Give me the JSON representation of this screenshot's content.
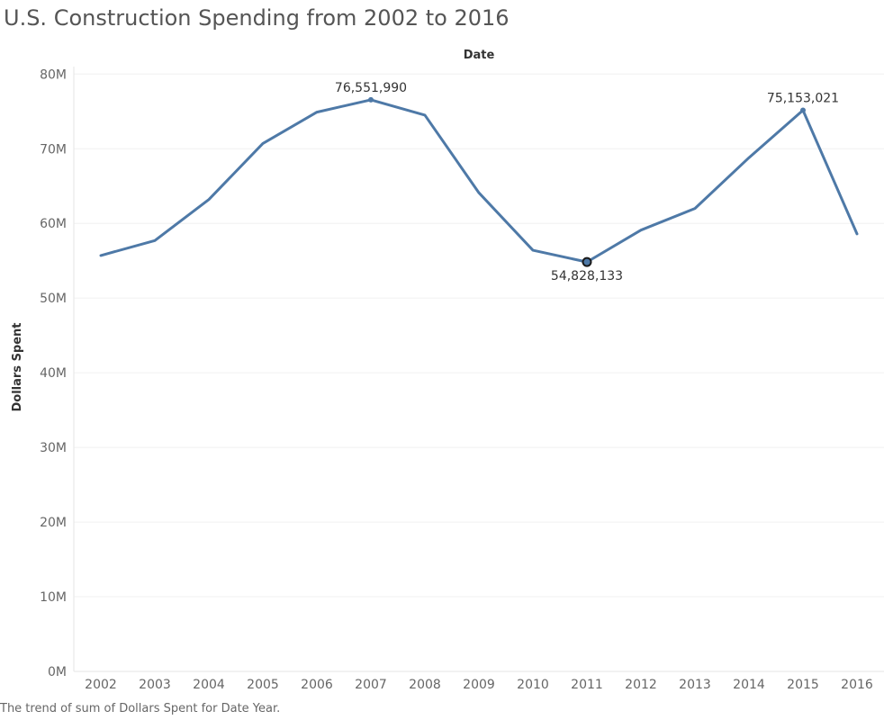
{
  "title": "U.S. Construction Spending from 2002 to 2016",
  "caption": "The trend of sum of Dollars Spent for Date Year.",
  "chart_data": {
    "type": "line",
    "title": "U.S. Construction Spending from 2002 to 2016",
    "xlabel": "Date",
    "ylabel": "Dollars Spent",
    "x": [
      "2002",
      "2003",
      "2004",
      "2005",
      "2006",
      "2007",
      "2008",
      "2009",
      "2010",
      "2011",
      "2012",
      "2013",
      "2014",
      "2015",
      "2016"
    ],
    "series": [
      {
        "values": [
          55700000,
          57700000,
          63200000,
          70700000,
          74900000,
          76551990,
          74500000,
          64100000,
          56400000,
          54828133,
          59100000,
          62000000,
          68800000,
          75153021,
          58600000
        ],
        "color": "#4e79a7"
      }
    ],
    "ylim": [
      0,
      81000000
    ],
    "y_ticks": [
      0,
      10000000,
      20000000,
      30000000,
      40000000,
      50000000,
      60000000,
      70000000,
      80000000
    ],
    "y_tick_labels": [
      "0M",
      "10M",
      "20M",
      "30M",
      "40M",
      "50M",
      "60M",
      "70M",
      "80M"
    ],
    "data_labels": [
      {
        "index": 5,
        "text": "76,551,990",
        "position": "above"
      },
      {
        "index": 9,
        "text": "54,828,133",
        "position": "below",
        "highlighted": true
      },
      {
        "index": 13,
        "text": "75,153,021",
        "position": "above"
      }
    ],
    "grid": true,
    "gridline_color": "#f0f0f0",
    "axis_color": "#e6e6e6"
  }
}
